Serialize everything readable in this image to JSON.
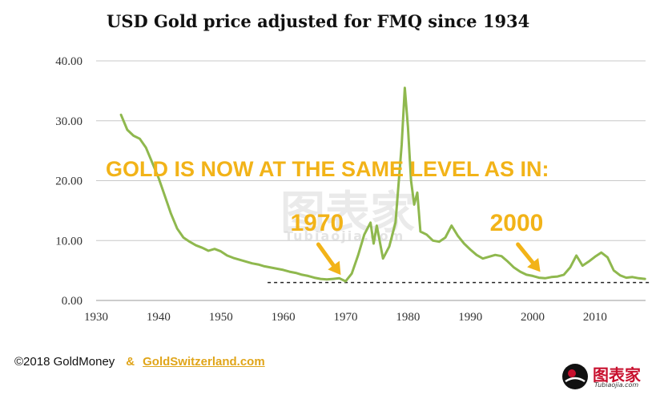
{
  "chart_data": {
    "type": "line",
    "title": "USD Gold price adjusted for FMQ since 1934",
    "xlabel": "",
    "ylabel": "",
    "xlim": [
      1930,
      2019
    ],
    "ylim": [
      0,
      40
    ],
    "x_ticks": [
      1930,
      1940,
      1950,
      1960,
      1970,
      1980,
      1990,
      2000,
      2010
    ],
    "y_ticks": [
      "0.00",
      "10.00",
      "20.00",
      "30.00",
      "40.00"
    ],
    "grid": "horizontal",
    "series": [
      {
        "name": "Gold price adjusted for FMQ",
        "color": "#8fb84e",
        "x": [
          1934,
          1935,
          1936,
          1937,
          1938,
          1939,
          1940,
          1941,
          1942,
          1943,
          1944,
          1945,
          1946,
          1947,
          1948,
          1949,
          1950,
          1951,
          1952,
          1953,
          1954,
          1955,
          1956,
          1957,
          1958,
          1959,
          1960,
          1961,
          1962,
          1963,
          1964,
          1965,
          1966,
          1967,
          1968,
          1969,
          1970,
          1971,
          1972,
          1973,
          1974,
          1974.5,
          1975,
          1976,
          1977,
          1978,
          1979,
          1979.5,
          1980,
          1980.5,
          1981,
          1981.5,
          1982,
          1983,
          1984,
          1985,
          1986,
          1987,
          1988,
          1989,
          1990,
          1991,
          1992,
          1993,
          1994,
          1995,
          1996,
          1997,
          1998,
          1999,
          2000,
          2001,
          2002,
          2003,
          2004,
          2005,
          2006,
          2007,
          2008,
          2009,
          2010,
          2011,
          2012,
          2013,
          2014,
          2015,
          2016,
          2017,
          2018
        ],
        "values": [
          31,
          28.5,
          27.5,
          27,
          25.5,
          23,
          20.5,
          17.5,
          14.5,
          12,
          10.5,
          9.8,
          9.2,
          8.8,
          8.3,
          8.6,
          8.2,
          7.5,
          7.1,
          6.8,
          6.5,
          6.2,
          6.0,
          5.7,
          5.5,
          5.3,
          5.1,
          4.8,
          4.6,
          4.3,
          4.1,
          3.8,
          3.6,
          3.5,
          3.6,
          3.7,
          3.2,
          4.5,
          7.5,
          11,
          13,
          9.5,
          12.5,
          7,
          9,
          13,
          26,
          35.5,
          29,
          20,
          16,
          18,
          11.5,
          11,
          10,
          9.8,
          10.5,
          12.5,
          10.8,
          9.5,
          8.5,
          7.6,
          7.0,
          7.3,
          7.6,
          7.4,
          6.5,
          5.5,
          4.8,
          4.3,
          4.1,
          3.8,
          3.7,
          3.9,
          4.0,
          4.3,
          5.5,
          7.5,
          5.8,
          6.5,
          7.3,
          8.0,
          7.2,
          5.0,
          4.2,
          3.8,
          3.9,
          3.7,
          3.6
        ]
      }
    ],
    "reference_line": {
      "value": 3.0,
      "style": "dashed",
      "x_from": 1957.5,
      "x_to": 2019
    },
    "annotations": {
      "headline": "GOLD IS NOW AT THE SAME LEVEL AS IN:",
      "labels": [
        {
          "text": "1970",
          "target_x": 1970,
          "target_y": 3.2
        },
        {
          "text": "2000",
          "target_x": 2002,
          "target_y": 3.7
        }
      ],
      "color": "#f2b318"
    },
    "watermark": {
      "cn": "图表家",
      "en": "Tubiaojia.com"
    }
  },
  "footer": {
    "credit": "©2018 GoldMoney",
    "amp": "&",
    "site": "GoldSwitzerland.com"
  },
  "logo": {
    "cn": "图表家",
    "en": "Tubiaojia.com"
  }
}
